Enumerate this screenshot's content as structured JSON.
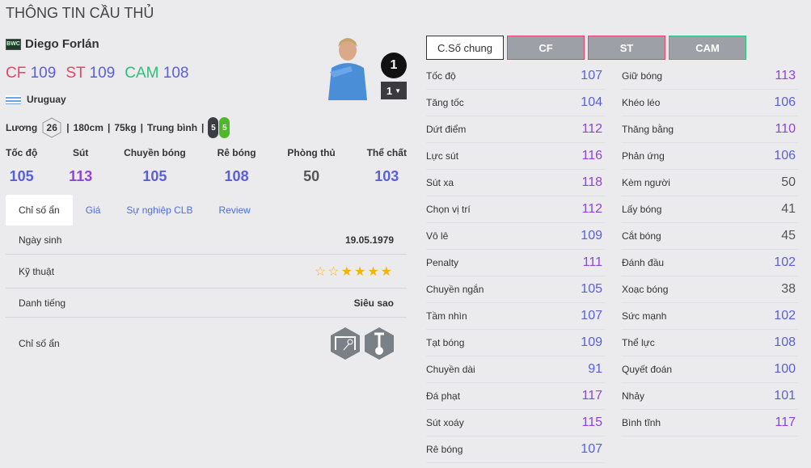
{
  "page_title": "THÔNG TIN CẦU THỦ",
  "player": {
    "season_badge": "BWC",
    "name": "Diego Forlán",
    "nation": "Uruguay",
    "rank": "1",
    "level": "1",
    "positions": [
      {
        "pos": "CF",
        "ovr": "109",
        "color": "#e8436b"
      },
      {
        "pos": "ST",
        "ovr": "109",
        "color": "#e8436b"
      },
      {
        "pos": "CAM",
        "ovr": "108",
        "color": "#2ebf7c"
      }
    ],
    "salary_label": "Lương",
    "salary": "26",
    "height": "180cm",
    "weight": "75kg",
    "body": "Trung bình",
    "weak_foot": "5",
    "strong_foot": "5"
  },
  "summary": [
    {
      "label": "Tốc độ",
      "value": "105"
    },
    {
      "label": "Sút",
      "value": "113"
    },
    {
      "label": "Chuyền bóng",
      "value": "105"
    },
    {
      "label": "Rê bóng",
      "value": "108"
    },
    {
      "label": "Phòng thủ",
      "value": "50"
    },
    {
      "label": "Thể chất",
      "value": "103"
    }
  ],
  "tabs": [
    "Chỉ số ẩn",
    "Giá",
    "Sự nghiệp CLB",
    "Review"
  ],
  "info": {
    "birth_label": "Ngày sinh",
    "birth": "19.05.1979",
    "skill_label": "Kỹ thuật",
    "skill_stars": 4,
    "skill_max": 6,
    "rep_label": "Danh tiếng",
    "rep": "Siêu sao",
    "hidden_label": "Chỉ số ẩn",
    "hidden_traits": [
      "finesse-shot-icon",
      "power-header-icon"
    ]
  },
  "position_buttons": [
    "C.Số chung",
    "CF",
    "ST",
    "CAM"
  ],
  "colors": {
    "high": "#8e44d6",
    "mid": "#5a5fd8",
    "low": "#555555",
    "cf": "#e8436b",
    "st": "#e8436b",
    "cam": "#2ebf7c"
  },
  "stats_left": [
    [
      "Tốc độ",
      "107"
    ],
    [
      "Tăng tốc",
      "104"
    ],
    [
      "Dứt điểm",
      "112"
    ],
    [
      "Lực sút",
      "116"
    ],
    [
      "Sút xa",
      "118"
    ],
    [
      "Chọn vị trí",
      "112"
    ],
    [
      "Vô lê",
      "109"
    ],
    [
      "Penalty",
      "111"
    ],
    [
      "Chuyền ngắn",
      "105"
    ],
    [
      "Tầm nhìn",
      "107"
    ],
    [
      "Tạt bóng",
      "109"
    ],
    [
      "Chuyền dài",
      "91"
    ],
    [
      "Đá phạt",
      "117"
    ],
    [
      "Sút xoáy",
      "115"
    ],
    [
      "Rê bóng",
      "107"
    ]
  ],
  "stats_right": [
    [
      "Giữ bóng",
      "113"
    ],
    [
      "Khéo léo",
      "106"
    ],
    [
      "Thăng bằng",
      "110"
    ],
    [
      "Phản ứng",
      "106"
    ],
    [
      "Kèm người",
      "50"
    ],
    [
      "Lấy bóng",
      "41"
    ],
    [
      "Cắt bóng",
      "45"
    ],
    [
      "Đánh đầu",
      "102"
    ],
    [
      "Xoạc bóng",
      "38"
    ],
    [
      "Sức mạnh",
      "102"
    ],
    [
      "Thể lực",
      "108"
    ],
    [
      "Quyết đoán",
      "100"
    ],
    [
      "Nhảy",
      "101"
    ],
    [
      "Bình tĩnh",
      "117"
    ]
  ]
}
